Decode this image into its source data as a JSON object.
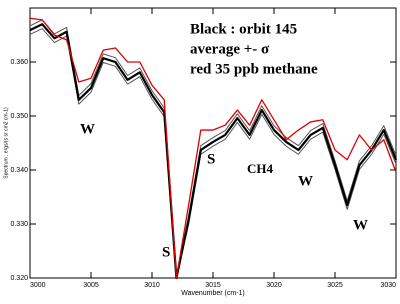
{
  "chart_data": {
    "type": "line",
    "x_label": "Wavenumber (cm-1)",
    "y_label": "Spectrum ; ergs/(s sr cm2 cm-1)",
    "x": [
      3000,
      3001,
      3002,
      3003,
      3004,
      3005,
      3006,
      3007,
      3008,
      3009,
      3010,
      3011,
      3012,
      3013,
      3014,
      3015,
      3016,
      3017,
      3018,
      3019,
      3020,
      3021,
      3022,
      3023,
      3024,
      3025,
      3026,
      3027,
      3028,
      3029,
      3030
    ],
    "series": [
      {
        "color": "#555555",
        "width": 1,
        "values": [
          0.3667,
          0.3678,
          0.3652,
          0.3664,
          0.3538,
          0.356,
          0.3615,
          0.3608,
          0.3575,
          0.3589,
          0.3547,
          0.3515,
          0.3202,
          0.3315,
          0.3445,
          0.346,
          0.3473,
          0.3504,
          0.3473,
          0.3519,
          0.3482,
          0.346,
          0.3445,
          0.3473,
          0.3486,
          0.3417,
          0.3343,
          0.3417,
          0.3445,
          0.3482,
          0.3427
        ]
      },
      {
        "color": "#555555",
        "width": 1,
        "values": [
          0.3651,
          0.3662,
          0.3636,
          0.3648,
          0.3522,
          0.3544,
          0.3599,
          0.3592,
          0.3559,
          0.3573,
          0.3531,
          0.3499,
          0.32,
          0.3299,
          0.3429,
          0.3444,
          0.3457,
          0.3488,
          0.3457,
          0.3503,
          0.3466,
          0.3444,
          0.3429,
          0.3457,
          0.347,
          0.3401,
          0.3327,
          0.3401,
          0.3429,
          0.3466,
          0.3411
        ]
      },
      {
        "color": "#000000",
        "width": 2.2,
        "values": [
          0.3659,
          0.367,
          0.3644,
          0.3656,
          0.353,
          0.3552,
          0.3607,
          0.36,
          0.3567,
          0.3581,
          0.3539,
          0.3507,
          0.32,
          0.3307,
          0.3437,
          0.3452,
          0.3465,
          0.3496,
          0.3465,
          0.3511,
          0.3474,
          0.3452,
          0.3437,
          0.3465,
          0.3478,
          0.3409,
          0.3335,
          0.3409,
          0.3437,
          0.3474,
          0.3419
        ]
      },
      {
        "color": "#e00000",
        "width": 1.3,
        "values": [
          0.3681,
          0.3678,
          0.365,
          0.3641,
          0.3563,
          0.357,
          0.3622,
          0.3626,
          0.36,
          0.36,
          0.3557,
          0.353,
          0.32,
          0.3335,
          0.3474,
          0.3474,
          0.3483,
          0.3511,
          0.3483,
          0.353,
          0.3493,
          0.3456,
          0.3474,
          0.3489,
          0.3493,
          0.3437,
          0.3419,
          0.3465,
          0.3437,
          0.3456,
          0.3396
        ]
      }
    ],
    "xlim": [
      3000,
      3030
    ],
    "xticks": [
      3000,
      3005,
      3010,
      3015,
      3020,
      3025,
      3030
    ],
    "ylim": [
      0.32,
      0.37
    ],
    "yticks": [
      {
        "value": 0.32,
        "label": "0.320"
      },
      {
        "value": 0.33,
        "label": "0.330"
      },
      {
        "value": 0.34,
        "label": "0.340"
      },
      {
        "value": 0.35,
        "label": "0.350"
      },
      {
        "value": 0.36,
        "label": "0.360"
      }
    ],
    "annotations": [
      "Black : orbit 145",
      "average +- σ",
      "red 35 ppb methane",
      "W",
      "S",
      "S",
      "CH4",
      "W",
      "W"
    ]
  }
}
